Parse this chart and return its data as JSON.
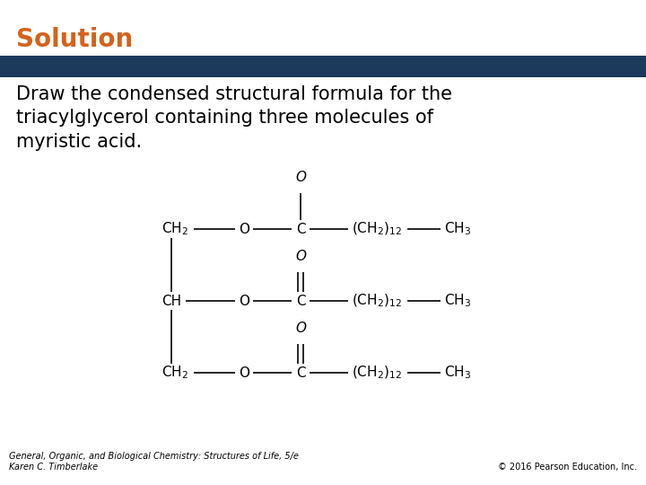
{
  "title": "Solution",
  "title_color": "#D4621A",
  "title_fontsize": 20,
  "banner_color": "#1B3A5C",
  "body_text": "Draw the condensed structural formula for the\ntriacylglycerol containing three molecules of\nmyristic acid.",
  "body_fontsize": 15,
  "footer_left": "General, Organic, and Biological Chemistry: Structures of Life, 5/e\nKaren C. Timberlake",
  "footer_right": "© 2016 Pearson Education, Inc.",
  "footer_fontsize": 7.0,
  "bg_color": "#FFFFFF",
  "fig_width": 7.2,
  "fig_height": 5.4,
  "dpi": 100
}
